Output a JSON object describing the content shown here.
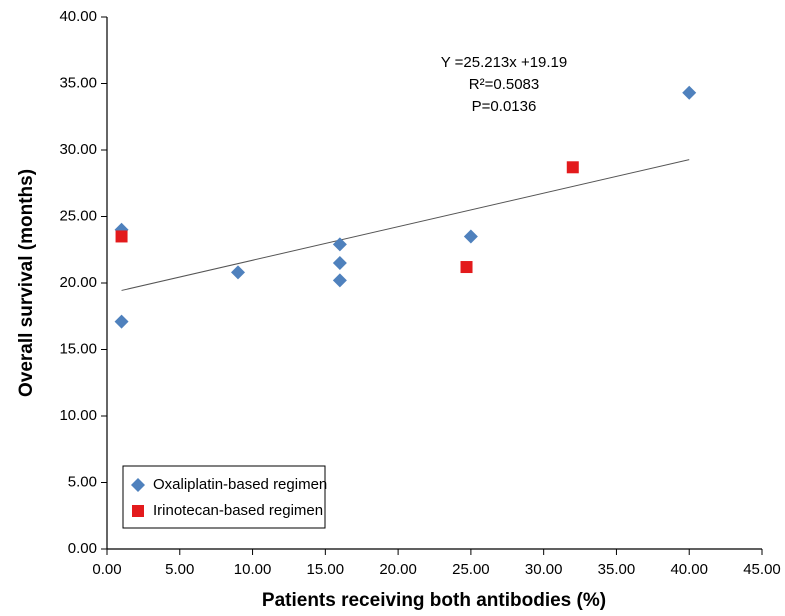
{
  "chart_data": {
    "type": "scatter",
    "xlabel": "Patients receiving both antibodies (%)",
    "ylabel": "Overall survival (months)",
    "xlim": [
      0,
      45
    ],
    "xticks": [
      {
        "value": 0,
        "label": "0.00"
      },
      {
        "value": 5,
        "label": "5.00"
      },
      {
        "value": 10,
        "label": "10.00"
      },
      {
        "value": 15,
        "label": "15.00"
      },
      {
        "value": 20,
        "label": "20.00"
      },
      {
        "value": 25,
        "label": "25.00"
      },
      {
        "value": 30,
        "label": "30.00"
      },
      {
        "value": 35,
        "label": "35.00"
      },
      {
        "value": 40,
        "label": "40.00"
      },
      {
        "value": 45,
        "label": "45.00"
      }
    ],
    "ylim": [
      0,
      40
    ],
    "yticks": [
      {
        "value": 0,
        "label": "0.00"
      },
      {
        "value": 5,
        "label": "5.00"
      },
      {
        "value": 10,
        "label": "10.00"
      },
      {
        "value": 15,
        "label": "15.00"
      },
      {
        "value": 20,
        "label": "20.00"
      },
      {
        "value": 25,
        "label": "25.00"
      },
      {
        "value": 30,
        "label": "30.00"
      },
      {
        "value": 35,
        "label": "35.00"
      },
      {
        "value": 40,
        "label": "40.00"
      }
    ],
    "series": [
      {
        "name": "Oxaliplatin-based regimen",
        "color": "#4f81bd",
        "marker": "diamond",
        "x": [
          1,
          1,
          9,
          16,
          16,
          16,
          25,
          40
        ],
        "values": [
          24.0,
          17.1,
          20.8,
          22.9,
          21.5,
          20.2,
          23.5,
          34.3
        ]
      },
      {
        "name": "Irinotecan-based regimen",
        "color": "#e31a1c",
        "marker": "square",
        "x": [
          1,
          24.7,
          32
        ],
        "values": [
          23.5,
          21.2,
          28.7
        ]
      }
    ],
    "trendline": {
      "x": [
        1,
        40
      ],
      "y": [
        19.44,
        29.28
      ],
      "color": "#555555"
    },
    "annotations": [
      "Y =25.213x +19.19",
      "R²=0.5083",
      "P=0.0136"
    ],
    "legend": "lower left",
    "grid": false
  }
}
